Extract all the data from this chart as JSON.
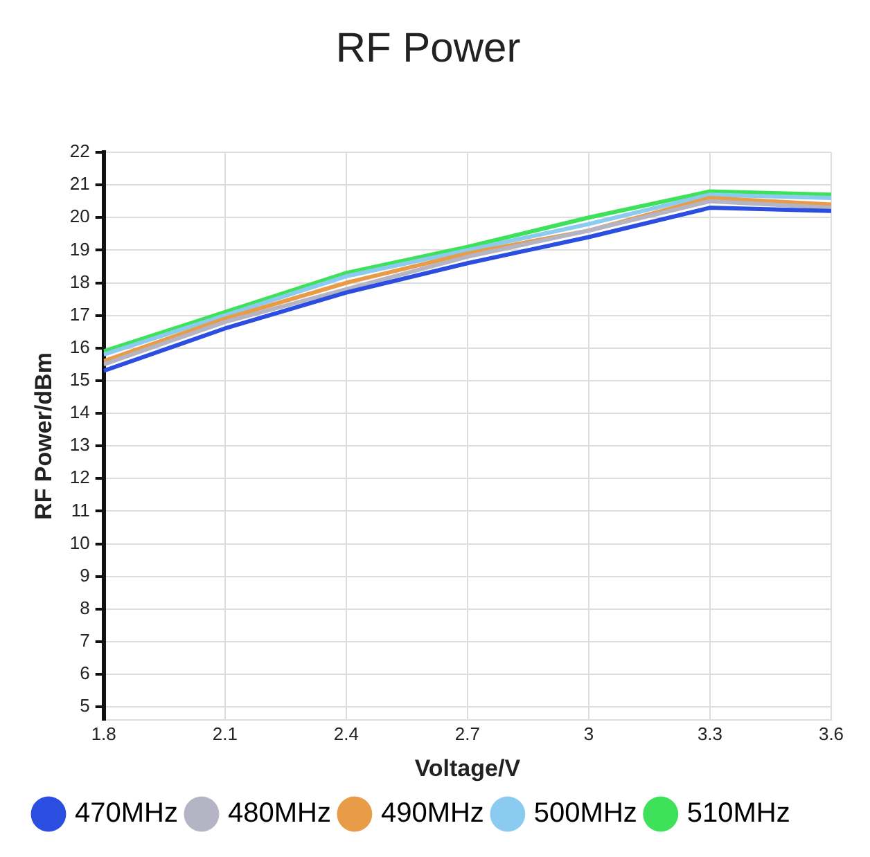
{
  "chart_data": {
    "type": "line",
    "title": "RF Power",
    "xlabel": "Voltage/V",
    "ylabel": "RF Power/dBm",
    "x": [
      1.8,
      2.1,
      2.4,
      2.7,
      3,
      3.3,
      3.6
    ],
    "series": [
      {
        "name": "470MHz",
        "color": "#2b4de0",
        "values": [
          15.3,
          16.6,
          17.7,
          18.6,
          19.4,
          20.3,
          20.2
        ]
      },
      {
        "name": "480MHz",
        "color": "#b4b4c4",
        "values": [
          15.5,
          16.8,
          17.8,
          18.8,
          19.6,
          20.5,
          20.3
        ]
      },
      {
        "name": "490MHz",
        "color": "#e89c48",
        "values": [
          15.6,
          16.9,
          18.0,
          18.9,
          19.6,
          20.6,
          20.4
        ]
      },
      {
        "name": "500MHz",
        "color": "#8ccbf0",
        "values": [
          15.8,
          17.0,
          18.2,
          19.0,
          19.8,
          20.7,
          20.6
        ]
      },
      {
        "name": "510MHz",
        "color": "#3de25a",
        "values": [
          15.9,
          17.1,
          18.3,
          19.1,
          20.0,
          20.8,
          20.7
        ]
      }
    ],
    "xlim": [
      1.8,
      3.6
    ],
    "xticks": [
      1.8,
      2.1,
      2.4,
      2.7,
      3,
      3.3,
      3.6
    ],
    "ylim": [
      4.6,
      22
    ],
    "yticks": [
      5,
      6,
      7,
      8,
      9,
      10,
      11,
      12,
      13,
      14,
      15,
      16,
      17,
      18,
      19,
      20,
      21,
      22
    ],
    "grid": true,
    "legend": "bottom",
    "marker": "none",
    "line_style": "solid"
  }
}
